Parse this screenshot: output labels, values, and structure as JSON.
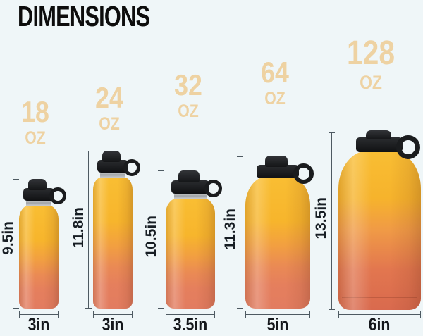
{
  "title": "DIMENSIONS",
  "colors": {
    "background": "#eff6f8",
    "title_text": "#0d0d0d",
    "capacity_label_tan": "#eed2a2",
    "dimension_line": "#4e5a62",
    "dimension_text": "#171e24",
    "bottle_yellow_top": "#f9be33",
    "bottle_coral_bottom": "#e27c60",
    "cap_black": "#141517",
    "steel_band": "#9fa3a6"
  },
  "bottles": [
    {
      "capacity": "18",
      "unit": "OZ",
      "height": "9.5in",
      "width": "3in"
    },
    {
      "capacity": "24",
      "unit": "OZ",
      "height": "11.8in",
      "width": "3in"
    },
    {
      "capacity": "32",
      "unit": "OZ",
      "height": "10.5in",
      "width": "3.5in"
    },
    {
      "capacity": "64",
      "unit": "OZ",
      "height": "11.3in",
      "width": "5in"
    },
    {
      "capacity": "128",
      "unit": "OZ",
      "height": "13.5in",
      "width": "6in"
    }
  ]
}
